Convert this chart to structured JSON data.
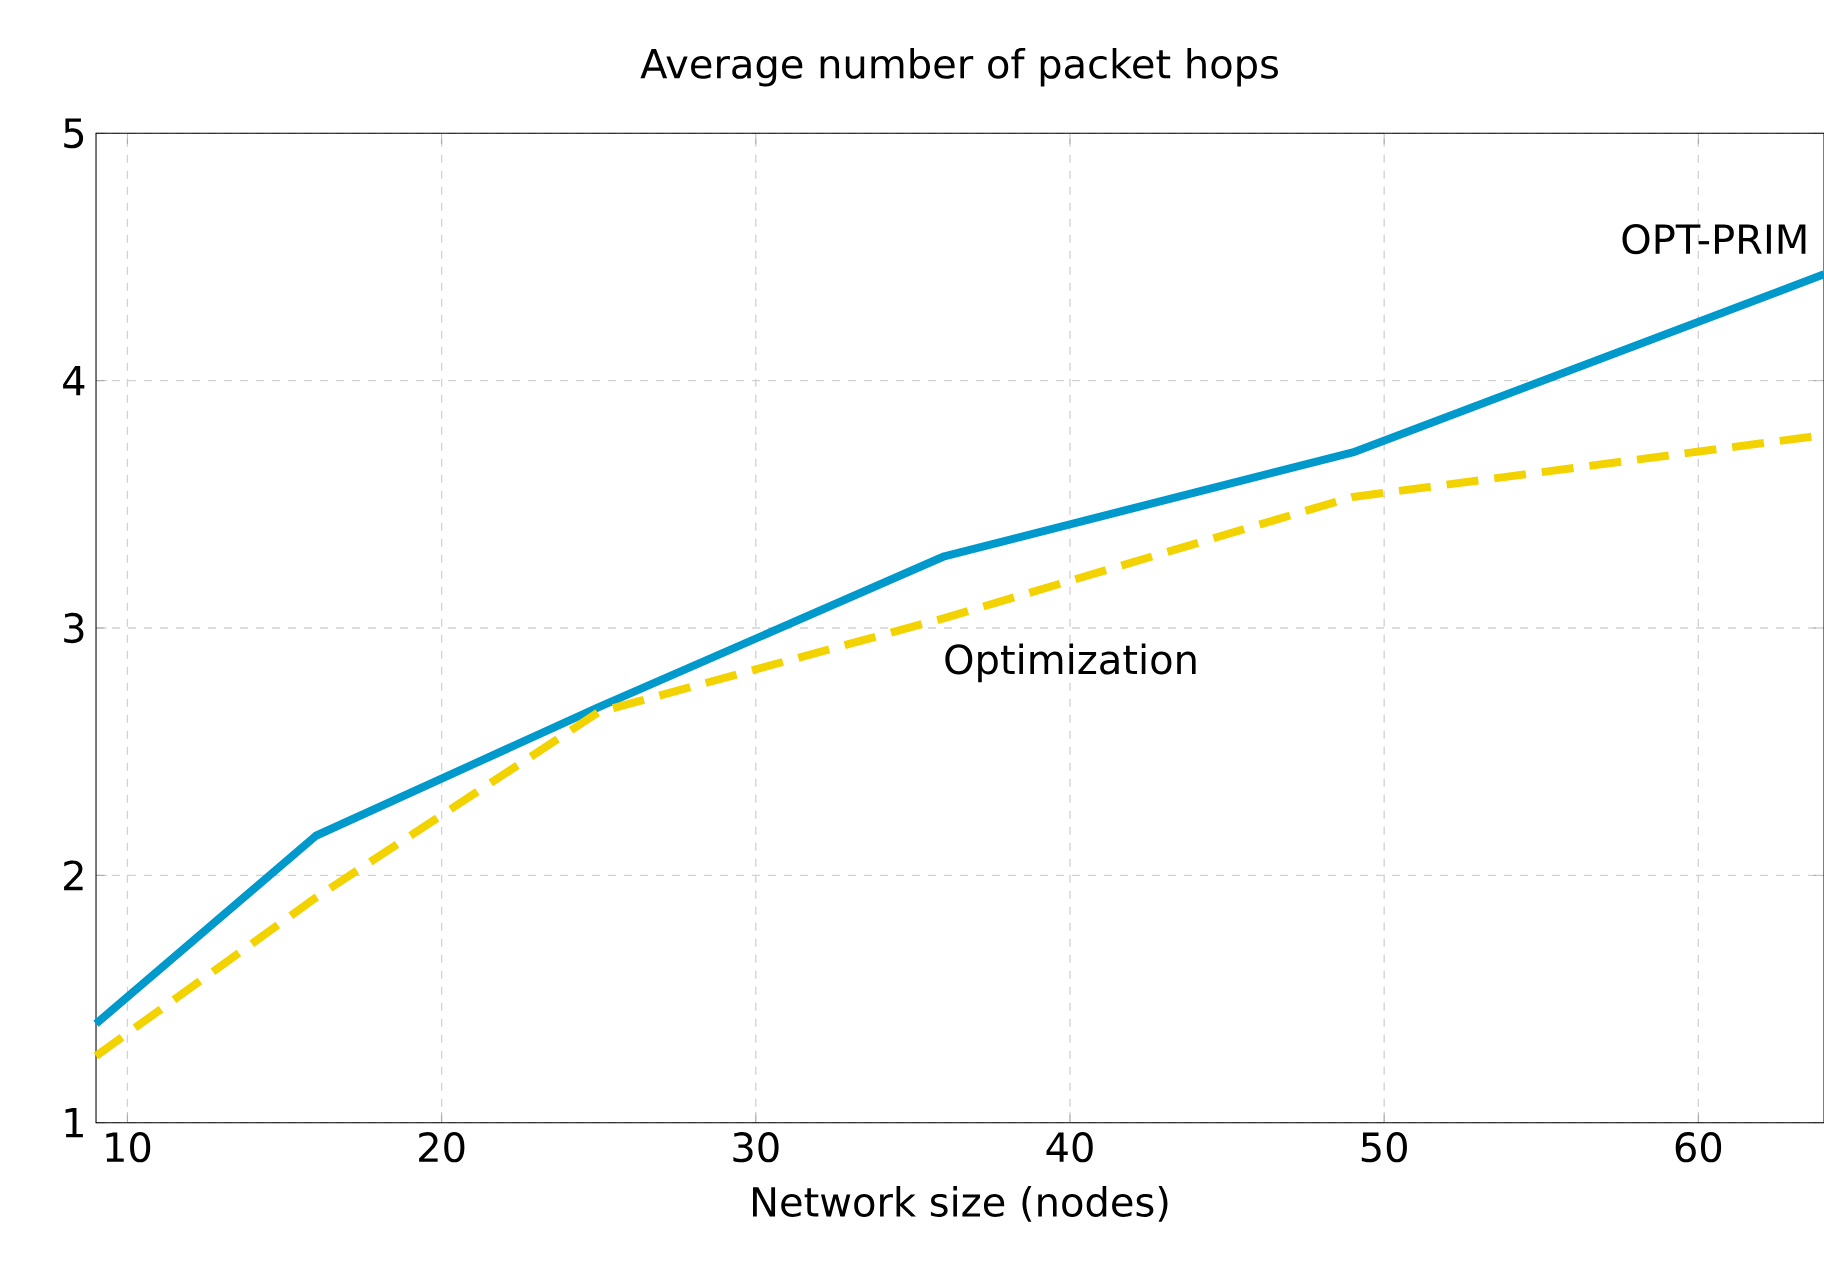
{
  "chart_data": {
    "type": "line",
    "title": "Average number of packet hops",
    "xlabel": "Network size (nodes)",
    "x": [
      9,
      16,
      25,
      36,
      49,
      64
    ],
    "series": [
      {
        "name": "OPT-PRIM",
        "color": "#0099cc",
        "line_style": "solid",
        "values": [
          1.4,
          2.16,
          2.68,
          3.29,
          3.71,
          4.43
        ]
      },
      {
        "name": "Optimization",
        "color": "#f2d300",
        "line_style": "dashed",
        "values": [
          1.27,
          1.91,
          2.66,
          3.04,
          3.53,
          3.78
        ]
      }
    ],
    "xlim": [
      9,
      64
    ],
    "ylim": [
      1,
      5
    ],
    "xticks": [
      10,
      20,
      30,
      40,
      50,
      60
    ],
    "yticks": [
      1,
      2,
      3,
      4,
      5
    ],
    "grid": true,
    "marker": "none"
  }
}
